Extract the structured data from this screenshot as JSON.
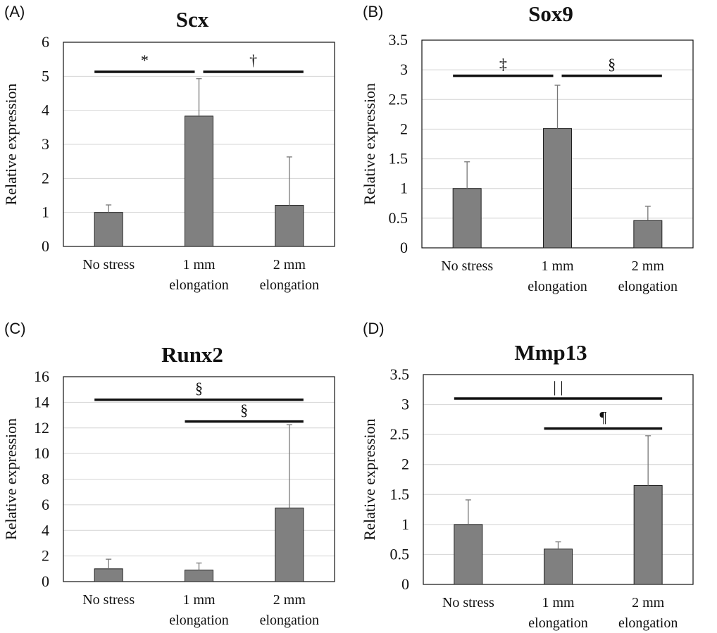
{
  "chart_data": [
    {
      "type": "bar",
      "panel_label": "(A)",
      "title": "Scx",
      "ylabel": "Relative expression",
      "ylim": [
        0,
        6
      ],
      "yticks": [
        "0",
        "1",
        "2",
        "3",
        "4",
        "5",
        "6"
      ],
      "categories": [
        [
          "No stress"
        ],
        [
          "1 mm",
          "elongation"
        ],
        [
          "2 mm",
          "elongation"
        ]
      ],
      "values": [
        1.0,
        3.83,
        1.21
      ],
      "errors": [
        0.22,
        1.1,
        1.42
      ],
      "grid": true,
      "significance": [
        {
          "from": 0,
          "to": 1,
          "level": 5.13,
          "symbol": "*"
        },
        {
          "from": 1,
          "to": 2,
          "level": 5.13,
          "symbol": "†"
        }
      ]
    },
    {
      "type": "bar",
      "panel_label": "(B)",
      "title": "Sox9",
      "ylabel": "Relative expression",
      "ylim": [
        0,
        3.5
      ],
      "yticks": [
        "0",
        "0.5",
        "1",
        "1.5",
        "2",
        "2.5",
        "3",
        "3.5"
      ],
      "categories": [
        [
          "No stress"
        ],
        [
          "1 mm",
          "elongation"
        ],
        [
          "2 mm",
          "elongation"
        ]
      ],
      "values": [
        1.0,
        2.01,
        0.46
      ],
      "errors": [
        0.45,
        0.73,
        0.24
      ],
      "grid": true,
      "significance": [
        {
          "from": 0,
          "to": 1,
          "level": 2.9,
          "symbol": "‡"
        },
        {
          "from": 1,
          "to": 2,
          "level": 2.9,
          "symbol": "§"
        }
      ]
    },
    {
      "type": "bar",
      "panel_label": "(C)",
      "title": "Runx2",
      "ylabel": "Relative expression",
      "ylim": [
        0,
        16
      ],
      "yticks": [
        "0",
        "2",
        "4",
        "6",
        "8",
        "10",
        "12",
        "14",
        "16"
      ],
      "categories": [
        [
          "No stress"
        ],
        [
          "1 mm",
          "elongation"
        ],
        [
          "2 mm",
          "elongation"
        ]
      ],
      "values": [
        1.0,
        0.9,
        5.75
      ],
      "errors": [
        0.75,
        0.55,
        6.5
      ],
      "grid": true,
      "significance": [
        {
          "from": 0,
          "to": 2,
          "level": 14.2,
          "symbol": "§"
        },
        {
          "from": 1,
          "to": 2,
          "level": 12.5,
          "symbol": "§"
        }
      ]
    },
    {
      "type": "bar",
      "panel_label": "(D)",
      "title": "Mmp13",
      "ylabel": "Relative expression",
      "ylim": [
        0,
        3.5
      ],
      "yticks": [
        "0",
        "0.5",
        "1",
        "1.5",
        "2",
        "2.5",
        "3",
        "3.5"
      ],
      "categories": [
        [
          "No stress"
        ],
        [
          "1 mm",
          "elongation"
        ],
        [
          "2 mm",
          "elongation"
        ]
      ],
      "values": [
        1.0,
        0.59,
        1.65
      ],
      "errors": [
        0.41,
        0.12,
        0.83
      ],
      "grid": true,
      "significance": [
        {
          "from": 0,
          "to": 2,
          "level": 3.1,
          "symbol": "| |"
        },
        {
          "from": 1,
          "to": 2,
          "level": 2.6,
          "symbol": "¶"
        }
      ]
    }
  ]
}
